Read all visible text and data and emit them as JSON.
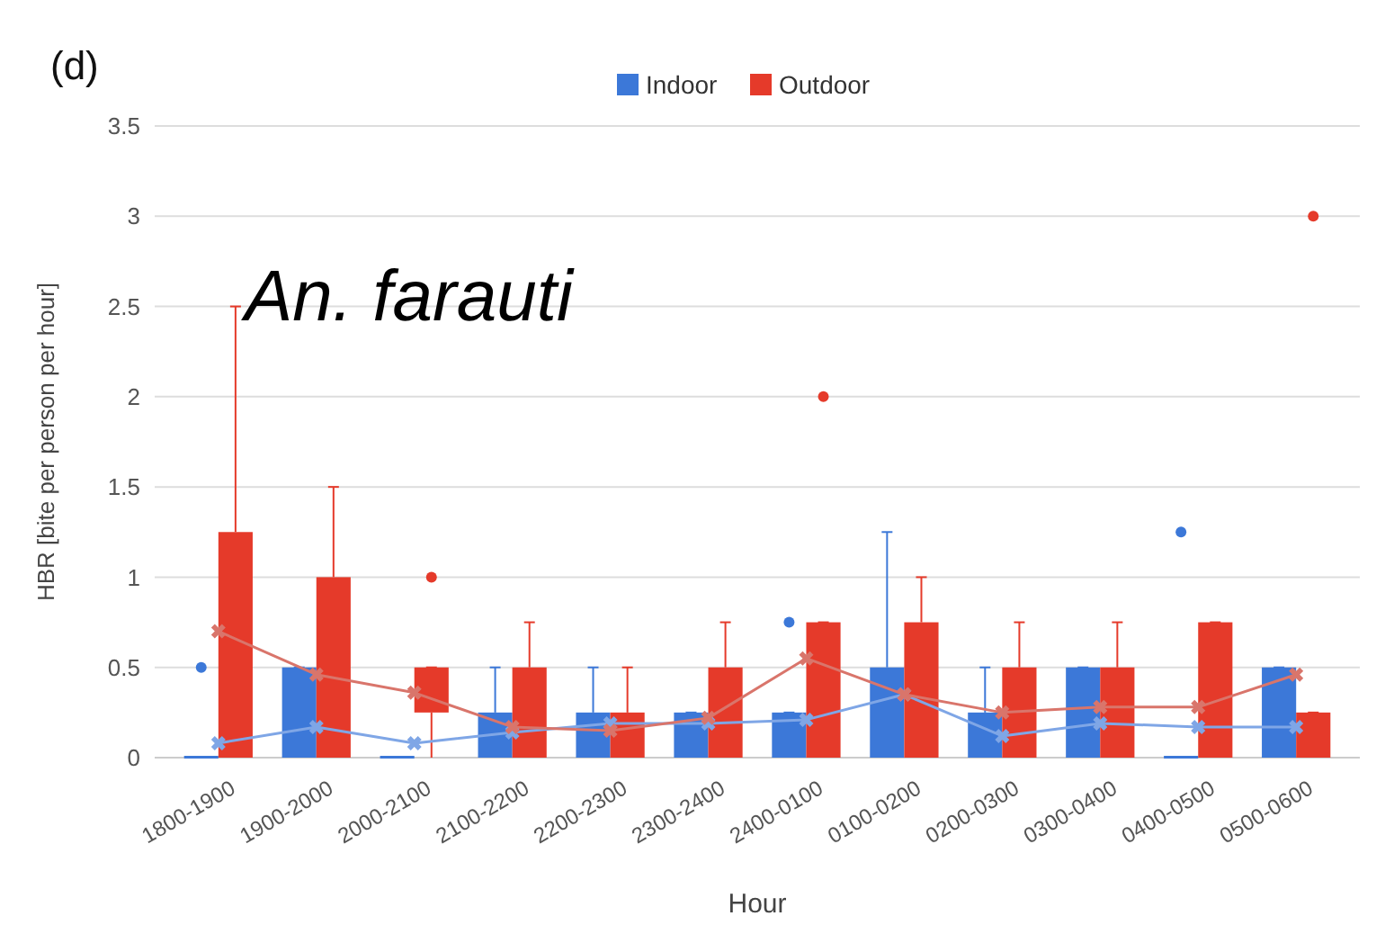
{
  "chart_data": {
    "type": "box",
    "title": "(d)",
    "xlabel": "Hour",
    "ylabel": "HBR [bite per person per hour]",
    "annotations": [
      "An. farauti"
    ],
    "categories": [
      "1800-1900",
      "1900-2000",
      "2000-2100",
      "2100-2200",
      "2200-2300",
      "2300-2400",
      "2400-0100",
      "0100-0200",
      "0200-0300",
      "0300-0400",
      "0400-0500",
      "0500-0600"
    ],
    "ylim": [
      0,
      3.5
    ],
    "yticks": [
      0,
      0.5,
      1,
      1.5,
      2,
      2.5,
      3,
      3.5
    ],
    "grid": "y",
    "legend": "top",
    "series": [
      {
        "name": "Indoor",
        "color": "#3c78d8",
        "boxes": [
          {
            "low": 0,
            "q1": 0,
            "median": 0,
            "q3": 0,
            "high": 0,
            "outliers": [
              0.5
            ]
          },
          {
            "low": 0,
            "q1": 0,
            "median": 0,
            "q3": 0.5,
            "high": 0.5
          },
          {
            "low": 0,
            "q1": 0,
            "median": 0,
            "q3": 0,
            "high": 0
          },
          {
            "low": 0,
            "q1": 0,
            "median": 0,
            "q3": 0.25,
            "high": 0.5
          },
          {
            "low": 0,
            "q1": 0,
            "median": 0,
            "q3": 0.25,
            "high": 0.5
          },
          {
            "low": 0,
            "q1": 0,
            "median": 0,
            "q3": 0.25,
            "high": 0.25
          },
          {
            "low": 0,
            "q1": 0,
            "median": 0,
            "q3": 0.25,
            "high": 0.25,
            "outliers": [
              0.75
            ]
          },
          {
            "low": 0,
            "q1": 0,
            "median": 0,
            "q3": 0.5,
            "high": 1.25
          },
          {
            "low": 0,
            "q1": 0,
            "median": 0,
            "q3": 0.25,
            "high": 0.5
          },
          {
            "low": 0,
            "q1": 0,
            "median": 0,
            "q3": 0.5,
            "high": 0.5
          },
          {
            "low": 0,
            "q1": 0,
            "median": 0,
            "q3": 0,
            "high": 0,
            "outliers": [
              1.25
            ]
          },
          {
            "low": 0,
            "q1": 0,
            "median": 0,
            "q3": 0.5,
            "high": 0.5
          }
        ]
      },
      {
        "name": "Outdoor",
        "color": "#e53a2a",
        "boxes": [
          {
            "low": 0,
            "q1": 0,
            "median": 0,
            "q3": 1.25,
            "high": 2.5
          },
          {
            "low": 0,
            "q1": 0,
            "median": 0,
            "q3": 1,
            "high": 1.5
          },
          {
            "low": 0,
            "q1": 0.25,
            "median": 0.25,
            "q3": 0.5,
            "high": 0.5,
            "outliers": [
              1
            ]
          },
          {
            "low": 0,
            "q1": 0,
            "median": 0,
            "q3": 0.5,
            "high": 0.75
          },
          {
            "low": 0,
            "q1": 0,
            "median": 0,
            "q3": 0.25,
            "high": 0.5
          },
          {
            "low": 0,
            "q1": 0,
            "median": 0,
            "q3": 0.5,
            "high": 0.75
          },
          {
            "low": 0,
            "q1": 0,
            "median": 0,
            "q3": 0.75,
            "high": 0.75,
            "outliers": [
              2
            ]
          },
          {
            "low": 0,
            "q1": 0,
            "median": 0,
            "q3": 0.75,
            "high": 1
          },
          {
            "low": 0,
            "q1": 0,
            "median": 0,
            "q3": 0.5,
            "high": 0.75
          },
          {
            "low": 0,
            "q1": 0,
            "median": 0,
            "q3": 0.5,
            "high": 0.75
          },
          {
            "low": 0,
            "q1": 0,
            "median": 0,
            "q3": 0.75,
            "high": 0.75
          },
          {
            "low": 0,
            "q1": 0,
            "median": 0,
            "q3": 0.25,
            "high": 0.25,
            "outliers": [
              3
            ]
          }
        ]
      },
      {
        "type": "line",
        "color": "#7fa6e6",
        "marker": "cross",
        "values": [
          0.08,
          0.17,
          0.08,
          0.14,
          0.19,
          0.19,
          0.21,
          0.35,
          0.12,
          0.19,
          0.17,
          0.17
        ]
      },
      {
        "type": "line",
        "color": "#d9756b",
        "marker": "cross",
        "values": [
          0.7,
          0.46,
          0.36,
          0.17,
          0.15,
          0.22,
          0.55,
          0.35,
          0.25,
          0.28,
          0.28,
          0.46
        ]
      }
    ]
  }
}
